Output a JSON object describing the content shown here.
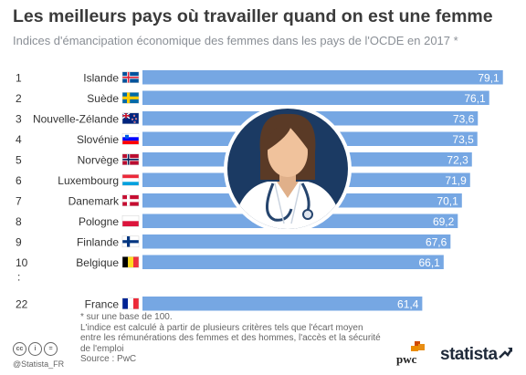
{
  "header": {
    "title": "Les meilleurs pays où travailler quand on est une femme",
    "subtitle": "Indices d'émancipation économique des femmes dans les pays de l'OCDE en 2017 *"
  },
  "chart_data": {
    "type": "bar",
    "orientation": "horizontal",
    "bar_color": "#76a7e3",
    "label_color": "#ffffff",
    "rows": [
      {
        "rank": "1",
        "country": "Islande",
        "value": 79.1,
        "label": "79,1",
        "flag": "iceland-flag"
      },
      {
        "rank": "2",
        "country": "Suède",
        "value": 76.1,
        "label": "76,1",
        "flag": "sweden-flag"
      },
      {
        "rank": "3",
        "country": "Nouvelle-Zélande",
        "value": 73.6,
        "label": "73,6",
        "flag": "new-zealand-flag"
      },
      {
        "rank": "4",
        "country": "Slovénie",
        "value": 73.5,
        "label": "73,5",
        "flag": "slovenia-flag"
      },
      {
        "rank": "5",
        "country": "Norvège",
        "value": 72.3,
        "label": "72,3",
        "flag": "norway-flag"
      },
      {
        "rank": "6",
        "country": "Luxembourg",
        "value": 71.9,
        "label": "71,9",
        "flag": "luxembourg-flag"
      },
      {
        "rank": "7",
        "country": "Danemark",
        "value": 70.1,
        "label": "70,1",
        "flag": "denmark-flag"
      },
      {
        "rank": "8",
        "country": "Pologne",
        "value": 69.2,
        "label": "69,2",
        "flag": "poland-flag"
      },
      {
        "rank": "9",
        "country": "Finlande",
        "value": 67.6,
        "label": "67,6",
        "flag": "finland-flag"
      },
      {
        "rank": "10",
        "country": "Belgique",
        "value": 66.1,
        "label": "66,1",
        "flag": "belgium-flag"
      },
      {
        "rank": "22",
        "country": "France",
        "value": 61.4,
        "label": "61,4",
        "flag": "france-flag"
      }
    ],
    "gap_marker": ":",
    "illustration": "female-doctor-icon"
  },
  "footnotes": {
    "line1": "* sur une base de 100.",
    "line2": "L'indice est calculé à partir de plusieurs critères tels que l'écart moyen",
    "line3": "entre les rémunérations des femmes et des hommes, l'accès et la sécurité",
    "line4": "de l'emploi",
    "source": "Source : PwC"
  },
  "footer": {
    "license_icons": [
      "cc",
      "i",
      "="
    ],
    "handle": "@Statista_FR",
    "partner_logo": "pwc",
    "brand": "statista"
  }
}
